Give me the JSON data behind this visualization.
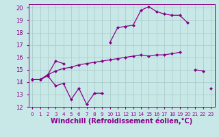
{
  "bg_color": "#c8e8e8",
  "grid_color": "#a8c8c8",
  "line_color": "#880088",
  "xlabel": "Windchill (Refroidissement éolien,°C)",
  "xlim": [
    -0.5,
    23.5
  ],
  "ylim": [
    12,
    20.3
  ],
  "xticks": [
    0,
    1,
    2,
    3,
    4,
    5,
    6,
    7,
    8,
    9,
    10,
    11,
    12,
    13,
    14,
    15,
    16,
    17,
    18,
    19,
    20,
    21,
    22,
    23
  ],
  "yticks": [
    12,
    13,
    14,
    15,
    16,
    17,
    18,
    19,
    20
  ],
  "line1_y": [
    14.2,
    14.2,
    14.5,
    13.7,
    13.9,
    12.6,
    13.5,
    12.2,
    13.1,
    13.1,
    null,
    null,
    null,
    null,
    null,
    null,
    null,
    null,
    null,
    null,
    null,
    null,
    null,
    13.5
  ],
  "line2_y": [
    14.2,
    14.2,
    14.6,
    14.9,
    15.1,
    15.2,
    15.4,
    15.5,
    15.6,
    15.7,
    15.8,
    15.9,
    16.0,
    16.1,
    16.2,
    16.1,
    16.2,
    16.2,
    16.3,
    16.4,
    null,
    15.0,
    14.9,
    null
  ],
  "line3_y": [
    14.2,
    14.2,
    14.6,
    15.7,
    15.5,
    null,
    null,
    null,
    null,
    null,
    17.2,
    18.4,
    18.5,
    18.6,
    19.8,
    20.1,
    19.7,
    19.5,
    19.4,
    19.4,
    18.8,
    null,
    null,
    null
  ],
  "font_color": "#880088",
  "tick_fontsize": 6,
  "label_fontsize": 7
}
